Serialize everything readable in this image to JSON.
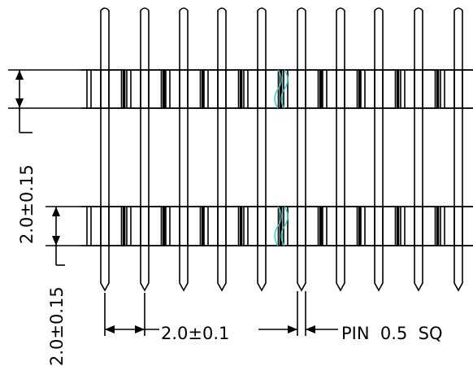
{
  "drawing": {
    "dimensions": {
      "row_height": "2.0±0.15",
      "row_pitch": "2.0±0.15",
      "pin_pitch": "2.0±0.1",
      "pin_size": "PIN  0.5  SQ"
    },
    "colors": {
      "line": "#000000",
      "break_mark": "#22d3d0",
      "background": "#ffffff"
    },
    "pin_columns": 10,
    "header_rows": 2
  }
}
